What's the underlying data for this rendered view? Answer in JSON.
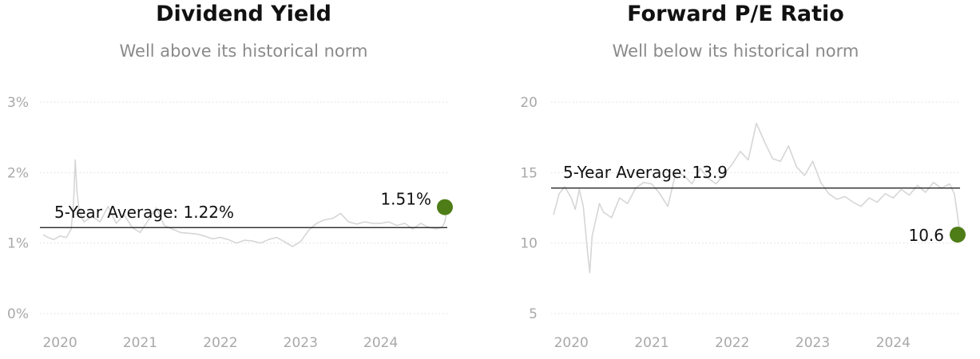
{
  "chart_data": [
    {
      "type": "line",
      "title": "Dividend Yield",
      "subtitle": "Well above its historical norm",
      "xlim": [
        2019.75,
        2024.83
      ],
      "ylim": [
        0,
        3
      ],
      "y_ticks": [
        {
          "value": 0,
          "label": "0%"
        },
        {
          "value": 1,
          "label": "1%"
        },
        {
          "value": 2,
          "label": "2%"
        },
        {
          "value": 3,
          "label": "3%"
        }
      ],
      "x_ticks": [
        {
          "value": 2020,
          "label": "2020"
        },
        {
          "value": 2021,
          "label": "2021"
        },
        {
          "value": 2022,
          "label": "2022"
        },
        {
          "value": 2023,
          "label": "2023"
        },
        {
          "value": 2024,
          "label": "2024"
        }
      ],
      "grid": true,
      "series": [
        {
          "x": [
            2019.79,
            2019.85,
            2019.92,
            2020.0,
            2020.08,
            2020.14,
            2020.17,
            2020.19,
            2020.21,
            2020.24,
            2020.3,
            2020.4,
            2020.5,
            2020.6,
            2020.7,
            2020.8,
            2020.9,
            2021.0,
            2021.1,
            2021.2,
            2021.3,
            2021.4,
            2021.5,
            2021.6,
            2021.7,
            2021.8,
            2021.9,
            2022.0,
            2022.1,
            2022.2,
            2022.3,
            2022.4,
            2022.5,
            2022.6,
            2022.7,
            2022.8,
            2022.9,
            2023.0,
            2023.1,
            2023.2,
            2023.3,
            2023.4,
            2023.5,
            2023.6,
            2023.7,
            2023.8,
            2023.9,
            2024.0,
            2024.1,
            2024.2,
            2024.3,
            2024.4,
            2024.5,
            2024.6,
            2024.7,
            2024.76,
            2024.8,
            2024.83
          ],
          "values": [
            1.12,
            1.08,
            1.05,
            1.1,
            1.08,
            1.2,
            1.6,
            2.18,
            1.75,
            1.45,
            1.3,
            1.38,
            1.3,
            1.52,
            1.28,
            1.4,
            1.22,
            1.15,
            1.32,
            1.5,
            1.25,
            1.2,
            1.15,
            1.14,
            1.13,
            1.1,
            1.06,
            1.08,
            1.05,
            1.0,
            1.04,
            1.03,
            1.0,
            1.05,
            1.08,
            1.02,
            0.95,
            1.02,
            1.18,
            1.28,
            1.33,
            1.35,
            1.42,
            1.3,
            1.27,
            1.3,
            1.28,
            1.28,
            1.3,
            1.25,
            1.28,
            1.2,
            1.28,
            1.22,
            1.2,
            1.22,
            1.3,
            1.51
          ]
        }
      ],
      "average": {
        "value": 1.22,
        "label": "5-Year Average: 1.22%"
      },
      "current": {
        "value": 1.51,
        "label": "1.51%",
        "color": "#4e7d17"
      },
      "line_color": "#d6d6d6"
    },
    {
      "type": "line",
      "title": "Forward P/E Ratio",
      "subtitle": "Well below its historical norm",
      "xlim": [
        2019.75,
        2024.83
      ],
      "ylim": [
        5,
        20
      ],
      "y_ticks": [
        {
          "value": 5,
          "label": "5"
        },
        {
          "value": 10,
          "label": "10"
        },
        {
          "value": 15,
          "label": "15"
        },
        {
          "value": 20,
          "label": "20"
        }
      ],
      "x_ticks": [
        {
          "value": 2020,
          "label": "2020"
        },
        {
          "value": 2021,
          "label": "2021"
        },
        {
          "value": 2022,
          "label": "2022"
        },
        {
          "value": 2023,
          "label": "2023"
        },
        {
          "value": 2024,
          "label": "2024"
        }
      ],
      "grid": true,
      "series": [
        {
          "x": [
            2019.78,
            2019.85,
            2019.92,
            2020.0,
            2020.05,
            2020.1,
            2020.15,
            2020.2,
            2020.23,
            2020.26,
            2020.3,
            2020.35,
            2020.4,
            2020.5,
            2020.6,
            2020.7,
            2020.8,
            2020.9,
            2021.0,
            2021.1,
            2021.2,
            2021.3,
            2021.4,
            2021.5,
            2021.6,
            2021.7,
            2021.8,
            2021.9,
            2022.0,
            2022.1,
            2022.2,
            2022.3,
            2022.4,
            2022.5,
            2022.6,
            2022.7,
            2022.8,
            2022.9,
            2023.0,
            2023.1,
            2023.2,
            2023.3,
            2023.4,
            2023.5,
            2023.6,
            2023.7,
            2023.8,
            2023.9,
            2024.0,
            2024.1,
            2024.2,
            2024.3,
            2024.4,
            2024.5,
            2024.6,
            2024.7,
            2024.76,
            2024.8,
            2024.83
          ],
          "values": [
            12.0,
            13.5,
            14.0,
            13.2,
            12.4,
            13.8,
            12.6,
            9.5,
            7.9,
            10.5,
            11.5,
            12.8,
            12.2,
            11.8,
            13.2,
            12.8,
            13.9,
            14.3,
            14.2,
            13.5,
            12.6,
            15.0,
            14.8,
            14.2,
            15.3,
            14.6,
            14.2,
            14.9,
            15.6,
            16.5,
            15.9,
            18.5,
            17.2,
            16.0,
            15.8,
            16.9,
            15.4,
            14.8,
            15.8,
            14.3,
            13.5,
            13.1,
            13.3,
            12.9,
            12.6,
            13.2,
            12.9,
            13.5,
            13.2,
            13.8,
            13.4,
            14.1,
            13.6,
            14.3,
            13.9,
            14.2,
            13.5,
            11.9,
            10.6
          ]
        }
      ],
      "average": {
        "value": 13.9,
        "label": "5-Year Average: 13.9"
      },
      "current": {
        "value": 10.6,
        "label": "10.6",
        "color": "#4e7d17"
      },
      "line_color": "#d6d6d6"
    }
  ]
}
